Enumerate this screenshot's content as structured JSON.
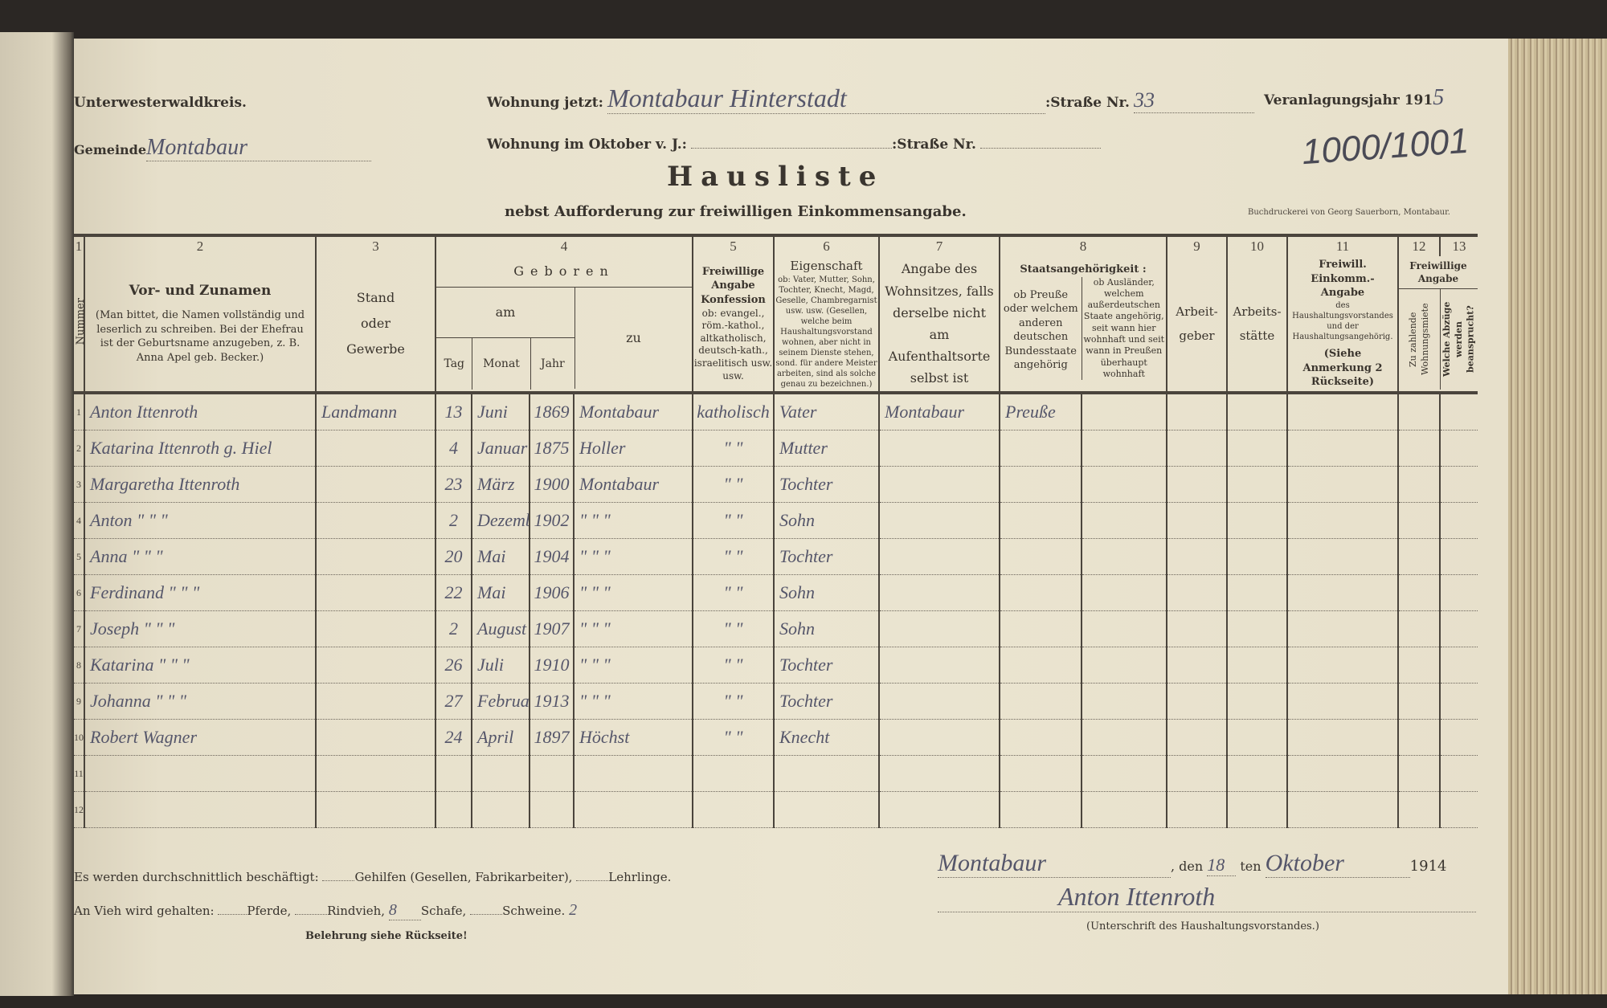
{
  "header": {
    "kreis": "Unterwesterwaldkreis.",
    "gemeinde_label": "Gemeinde",
    "gemeinde_value": "Montabaur",
    "wohnung_jetzt_label": "Wohnung jetzt:",
    "wohnung_jetzt_value": "Montabaur Hinterstadt",
    "strasse_label": ":Straße Nr.",
    "strasse_nr_value": "33",
    "wohnung_oktober_label": "Wohnung im Oktober v. J.:",
    "strasse_label_2": ":Straße Nr.",
    "veranlagungsjahr_label": "Veranlagungsjahr 191",
    "veranlagungsjahr_value": "5",
    "reference_number": "1000/1001",
    "title": "Hausliste",
    "subtitle": "nebst Aufforderung zur freiwilligen Einkommensangabe.",
    "printer": "Buchdruckerei von Georg Sauerborn, Montabaur."
  },
  "table": {
    "column_numbers": [
      "1",
      "2",
      "3",
      "4",
      "5",
      "6",
      "7",
      "8",
      "9",
      "10",
      "11",
      "12",
      "13"
    ],
    "col1": "Nummer",
    "col2_title": "Vor- und Zunamen",
    "col2_note": "(Man bittet, die Namen vollständig und leserlich zu schreiben. Bei der Ehefrau ist der Geburtsname anzugeben, z. B. Anna Apel geb. Becker.)",
    "col3": "Stand oder Gewerbe",
    "col4_title": "Geboren",
    "col4_am": "am",
    "col4_zu": "zu",
    "col4_tag": "Tag",
    "col4_monat": "Monat",
    "col4_jahr": "Jahr",
    "col5_title": "Freiwillige Angabe Konfession",
    "col5_note": "ob: evangel., röm.-kathol., altkatholisch, deutsch-kath., israelitisch usw. usw.",
    "col6_title": "Eigenschaft",
    "col6_note": "ob: Vater, Mutter, Sohn, Tochter, Knecht, Magd, Geselle, Chambregarnist usw. usw. (Gesellen, welche beim Haushaltungsvorstand wohnen, aber nicht in seinem Dienste stehen, sond. für andere Meister arbeiten, sind als solche genau zu bezeichnen.)",
    "col7": "Angabe des Wohnsitzes, falls derselbe nicht am Aufenthaltsorte selbst ist",
    "col8_title": "Staatsangehörigkeit :",
    "col8a": "ob Preuße oder welchem anderen deutschen Bundesstaate angehörig",
    "col8b": "ob Ausländer, welchem außerdeutschen Staate angehörig, seit wann hier wohnhaft und seit wann in Preußen überhaupt wohnhaft",
    "col9": "Arbeit-geber",
    "col10": "Arbeits-stätte",
    "col11_title": "Freiwill. Einkomm.-Angabe",
    "col11_note": "des Haushaltungsvorstandes und der Haushaltungsangehörig.",
    "col11_ref": "(Siehe Anmerkung 2 Rückseite)",
    "col1213_title": "Freiwillige Angabe",
    "col12": "Zu zahlende Wohnungsmiete",
    "col13": "Welche Abzüge werden beansprucht?",
    "rows": [
      {
        "nr": "1",
        "name": "Anton Ittenroth",
        "stand": "Landmann",
        "tag": "13",
        "monat": "Juni",
        "jahr": "1869",
        "ort": "Montabaur",
        "konfession": "katholisch",
        "eigenschaft": "Vater",
        "wohnsitz": "Montabaur",
        "staat": "Preuße"
      },
      {
        "nr": "2",
        "name": "Katarina Ittenroth g. Hiel",
        "stand": "",
        "tag": "4",
        "monat": "Januar",
        "jahr": "1875",
        "ort": "Holler",
        "konfession": "\" \"",
        "eigenschaft": "Mutter",
        "wohnsitz": "",
        "staat": ""
      },
      {
        "nr": "3",
        "name": "Margaretha Ittenroth",
        "stand": "",
        "tag": "23",
        "monat": "März",
        "jahr": "1900",
        "ort": "Montabaur",
        "konfession": "\" \"",
        "eigenschaft": "Tochter",
        "wohnsitz": "",
        "staat": ""
      },
      {
        "nr": "4",
        "name": "Anton \" \" \"",
        "stand": "",
        "tag": "2",
        "monat": "Dezember",
        "jahr": "1902",
        "ort": "\" \" \"",
        "konfession": "\" \"",
        "eigenschaft": "Sohn",
        "wohnsitz": "",
        "staat": ""
      },
      {
        "nr": "5",
        "name": "Anna \" \" \"",
        "stand": "",
        "tag": "20",
        "monat": "Mai",
        "jahr": "1904",
        "ort": "\" \" \"",
        "konfession": "\" \"",
        "eigenschaft": "Tochter",
        "wohnsitz": "",
        "staat": ""
      },
      {
        "nr": "6",
        "name": "Ferdinand \" \" \"",
        "stand": "",
        "tag": "22",
        "monat": "Mai",
        "jahr": "1906",
        "ort": "\" \" \"",
        "konfession": "\" \"",
        "eigenschaft": "Sohn",
        "wohnsitz": "",
        "staat": ""
      },
      {
        "nr": "7",
        "name": "Joseph \" \" \"",
        "stand": "",
        "tag": "2",
        "monat": "August",
        "jahr": "1907",
        "ort": "\" \" \"",
        "konfession": "\" \"",
        "eigenschaft": "Sohn",
        "wohnsitz": "",
        "staat": ""
      },
      {
        "nr": "8",
        "name": "Katarina \" \" \"",
        "stand": "",
        "tag": "26",
        "monat": "Juli",
        "jahr": "1910",
        "ort": "\" \" \"",
        "konfession": "\" \"",
        "eigenschaft": "Tochter",
        "wohnsitz": "",
        "staat": ""
      },
      {
        "nr": "9",
        "name": "Johanna \" \" \"",
        "stand": "",
        "tag": "27",
        "monat": "Februar",
        "jahr": "1913",
        "ort": "\" \" \"",
        "konfession": "\" \"",
        "eigenschaft": "Tochter",
        "wohnsitz": "",
        "staat": ""
      },
      {
        "nr": "10",
        "name": "Robert Wagner",
        "stand": "",
        "tag": "24",
        "monat": "April",
        "jahr": "1897",
        "ort": "Höchst",
        "konfession": "\" \"",
        "eigenschaft": "Knecht",
        "wohnsitz": "",
        "staat": ""
      },
      {
        "nr": "11",
        "name": "",
        "stand": "",
        "tag": "",
        "monat": "",
        "jahr": "",
        "ort": "",
        "konfession": "",
        "eigenschaft": "",
        "wohnsitz": "",
        "staat": ""
      },
      {
        "nr": "12",
        "name": "",
        "stand": "",
        "tag": "",
        "monat": "",
        "jahr": "",
        "ort": "",
        "konfession": "",
        "eigenschaft": "",
        "wohnsitz": "",
        "staat": ""
      }
    ]
  },
  "footer": {
    "line1_a": "Es werden durchschnittlich beschäftigt:",
    "line1_b": "Gehilfen (Gesellen, Fabrikarbeiter),",
    "line1_c": "Lehrlinge.",
    "line2_a": "An Vieh wird gehalten:",
    "line2_b": "Pferde,",
    "line2_c": "Rindvieh,",
    "schafe_value": "8",
    "line2_d": "Schafe,",
    "line2_e": "Schweine.",
    "schweine_value": "2",
    "belehrung": "Belehrung siehe Rückseite!",
    "place_value": "Montabaur",
    "den_label": ", den",
    "day_value": "18",
    "ten_label": "ten",
    "month_value": "Oktober",
    "year": "1914",
    "signature_value": "Anton Ittenroth",
    "signature_label": "(Unterschrift des Haushaltungsvorstandes.)"
  }
}
